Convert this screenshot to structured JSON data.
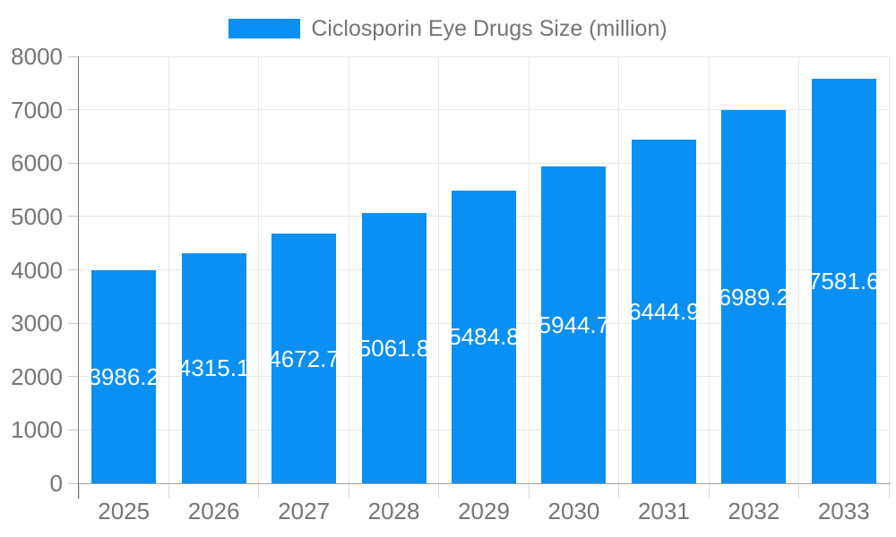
{
  "chart_data": {
    "type": "bar",
    "title": "Ciclosporin Eye Drugs Size (million)",
    "legend_position": "top",
    "categories": [
      "2025",
      "2026",
      "2027",
      "2028",
      "2029",
      "2030",
      "2031",
      "2032",
      "2033"
    ],
    "series": [
      {
        "name": "Ciclosporin Eye Drugs Size (million)",
        "color": "#0a90f5",
        "values": [
          3986.2,
          4315.1,
          4672.7,
          5061.8,
          5484.8,
          5944.7,
          6444.9,
          6989.2,
          7581.6
        ]
      }
    ],
    "value_labels": [
      "3986.2",
      "4315.1",
      "4672.7",
      "5061.8",
      "5484.8",
      "5944.7",
      "6444.9",
      "6989.2",
      "7581.6"
    ],
    "xlabel": "",
    "ylabel": "",
    "ylim": [
      0,
      8000
    ],
    "ytick_step": 1000,
    "ytick_labels": [
      "0",
      "1000",
      "2000",
      "3000",
      "4000",
      "5000",
      "6000",
      "7000",
      "8000"
    ],
    "grid": true,
    "grid_color": "#e6e6e6",
    "axis_text_color": "#757575",
    "value_label_color": "#ffffff",
    "y_axis_line_color": "#757575",
    "x_axis_line_color": "#9e9e9e"
  }
}
